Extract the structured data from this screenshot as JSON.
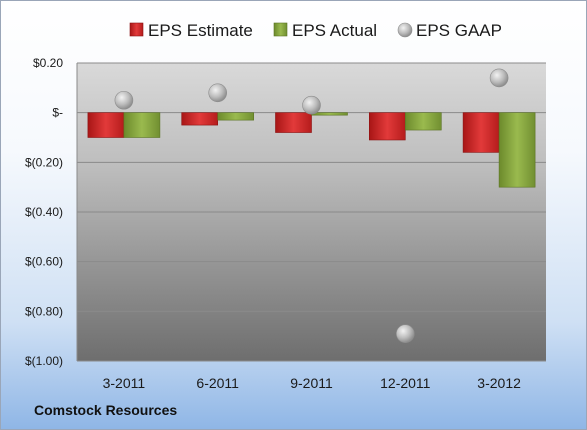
{
  "footer": {
    "company": "Comstock Resources"
  },
  "colors": {
    "estimate": "#d42b2b",
    "actual": "#86a53d",
    "gaap": "#b8b8b8"
  },
  "chart_data": {
    "type": "bar",
    "title": "",
    "xlabel": "",
    "ylabel": "",
    "categories": [
      "3-2011",
      "6-2011",
      "9-2011",
      "12-2011",
      "3-2012"
    ],
    "ylim": [
      -1.0,
      0.2
    ],
    "yticks": [
      0.2,
      0.0,
      -0.2,
      -0.4,
      -0.6,
      -0.8,
      -1.0
    ],
    "ytick_labels": [
      "$0.20",
      "$-",
      "$(0.20)",
      "$(0.40)",
      "$(0.60)",
      "$(0.80)",
      "$(1.00)"
    ],
    "grid": true,
    "legend_position": "top",
    "series": [
      {
        "name": "EPS Estimate",
        "kind": "bar",
        "values": [
          -0.1,
          -0.05,
          -0.08,
          -0.11,
          -0.16
        ]
      },
      {
        "name": "EPS Actual",
        "kind": "bar",
        "values": [
          -0.1,
          -0.03,
          -0.01,
          -0.07,
          -0.3
        ]
      },
      {
        "name": "EPS GAAP",
        "kind": "point",
        "values": [
          0.05,
          0.08,
          0.03,
          -0.89,
          0.14
        ]
      }
    ]
  }
}
